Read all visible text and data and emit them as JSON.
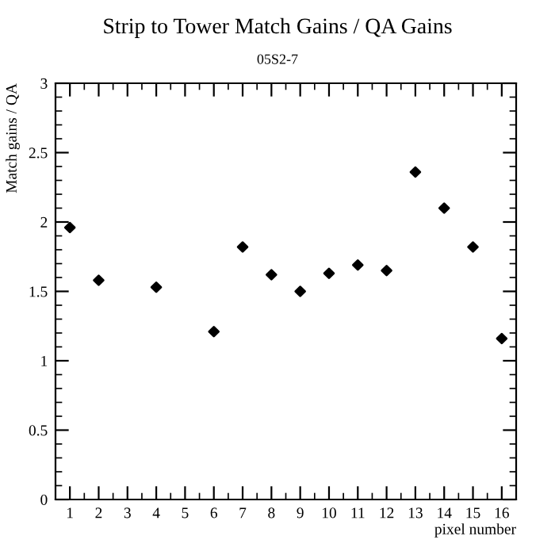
{
  "chart_data": {
    "type": "scatter",
    "title": "Strip to Tower Match Gains / QA Gains",
    "subtitle": "05S2-7",
    "xlabel": "pixel number",
    "ylabel": "Match gains / QA",
    "x": [
      1,
      2,
      4,
      6,
      7,
      8,
      9,
      10,
      11,
      12,
      13,
      14,
      15,
      16
    ],
    "values": [
      1.96,
      1.58,
      1.53,
      1.21,
      1.82,
      1.62,
      1.5,
      1.63,
      1.69,
      1.65,
      2.36,
      2.1,
      1.82,
      1.16
    ],
    "errors": [
      null,
      null,
      null,
      null,
      null,
      null,
      null,
      null,
      null,
      null,
      null,
      0.02,
      null,
      0.02
    ],
    "color": "#000000",
    "marker": "diamond",
    "xlim": [
      0.5,
      16.5
    ],
    "xticks": [
      1,
      2,
      3,
      4,
      5,
      6,
      7,
      8,
      9,
      10,
      11,
      12,
      13,
      14,
      15,
      16
    ],
    "ylim": [
      0,
      3
    ],
    "yticks": [
      0,
      0.5,
      1,
      1.5,
      2,
      2.5,
      3
    ],
    "grid": false,
    "legend": false
  }
}
